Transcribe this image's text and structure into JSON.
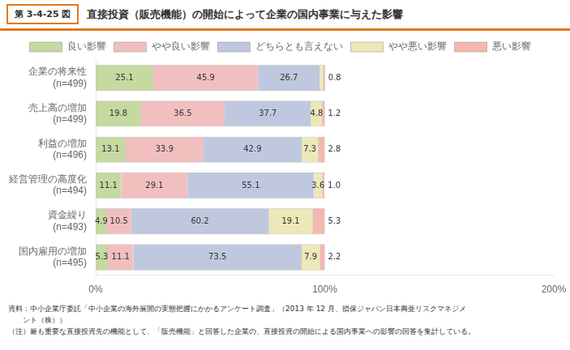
{
  "chart_data": {
    "type": "bar",
    "orientation": "horizontal",
    "stacked": true,
    "title": "直接投資（販売機能）の開始によって企業の国内事業に与えた影響",
    "annotations": [
      "第 3-4-25 図",
      "資料：中小企業庁委託「中小企業の海外展開の実態把握にかかるアンケート調査」（2013 年 12 月、損保ジャパン日本興亜リスクマネジメ",
      "　　ント（株））",
      "（注）最も重要な直接投資先の機能として、「販売機能」と回答した企業の、直接投資の開始による国内事業への影響の回答を集計している。"
    ],
    "categories": [
      "企業の将来性\n(n=499)",
      "売上高の増加\n(n=499)",
      "利益の増加\n(n=496)",
      "経営管理の高度化\n(n=494)",
      "資金繰り\n(n=493)",
      "国内雇用の増加\n(n=495)"
    ],
    "series": [
      {
        "name": "良い影響",
        "color": "#c5d9a0",
        "values": [
          25.1,
          19.8,
          13.1,
          11.1,
          4.9,
          5.3
        ],
        "value_labels": [
          "25.1",
          "19.8",
          "13.1",
          "11.1",
          "4.9",
          "5.3"
        ]
      },
      {
        "name": "やや良い影響",
        "color": "#f2bfbf",
        "values": [
          45.9,
          36.5,
          33.9,
          29.1,
          10.5,
          11.1
        ],
        "value_labels": [
          "45.9",
          "36.5",
          "33.9",
          "29.1",
          "10.5",
          "11.1"
        ]
      },
      {
        "name": "どちらとも言えない",
        "color": "#c0c8df",
        "values": [
          26.7,
          37.7,
          42.9,
          55.1,
          60.2,
          73.5
        ],
        "value_labels": [
          "26.7",
          "37.7",
          "42.9",
          "55.1",
          "60.2",
          "73.5"
        ]
      },
      {
        "name": "やや悪い影響",
        "color": "#ede8b8",
        "values": [
          1.6,
          4.8,
          7.3,
          3.6,
          19.1,
          7.9
        ],
        "value_labels": [
          null,
          "4.8",
          "7.3",
          "3.6",
          "19.1",
          "7.9"
        ]
      },
      {
        "name": "悪い影響",
        "color": "#f4b8b0",
        "values": [
          0.8,
          1.2,
          2.8,
          1.0,
          5.3,
          2.2
        ],
        "value_labels": [
          "0.8",
          "1.2",
          "2.8",
          "1.0",
          "5.3",
          "2.2"
        ]
      }
    ],
    "xlim": [
      0,
      200
    ],
    "xticks": [
      {
        "value": 0,
        "label": "0%"
      },
      {
        "value": 100,
        "label": "100%"
      },
      {
        "value": 200,
        "label": "200%"
      }
    ],
    "data_labels": true,
    "legend": "top",
    "grid": false
  }
}
